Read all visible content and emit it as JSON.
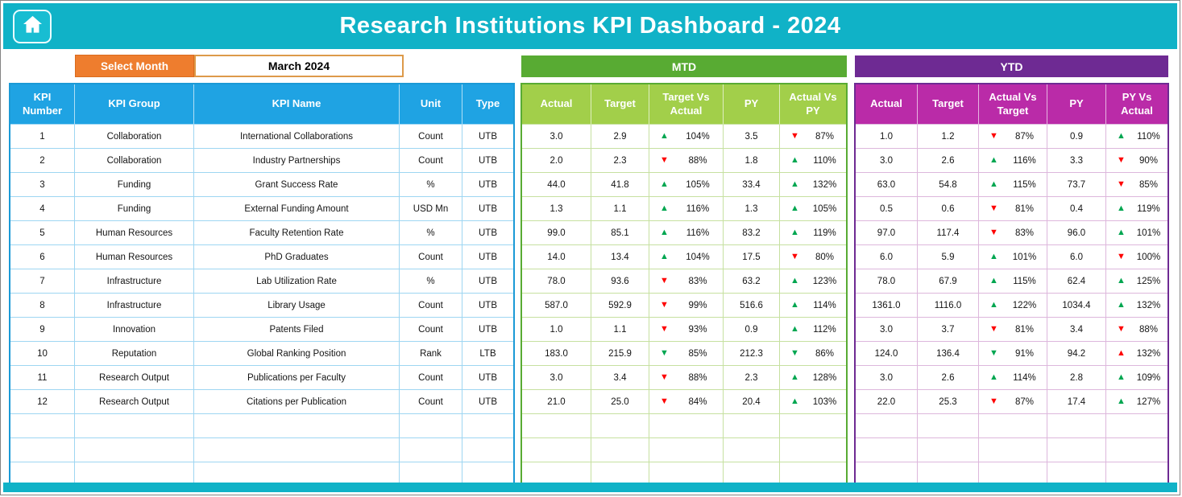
{
  "app": {
    "title": "Research Institutions KPI Dashboard - 2024"
  },
  "controls": {
    "select_month_label": "Select Month",
    "selected_month": "March 2024"
  },
  "colors": {
    "banner_teal": "#10b2c7",
    "select_month_orange": "#ee7d2e",
    "left_header_blue": "#1fa3e3",
    "mtd_banner_green": "#58ab33",
    "mtd_header_green": "#a2cf4a",
    "ytd_banner_purple": "#6e2a93",
    "ytd_header_magenta": "#ba2ba8",
    "arrow_green": "#00a650",
    "arrow_red": "#fe0000"
  },
  "table": {
    "left_headers": [
      "KPI Number",
      "KPI Group",
      "KPI Name",
      "Unit",
      "Type"
    ],
    "mtd_title": "MTD",
    "mtd_headers": [
      "Actual",
      "Target",
      "Target Vs Actual",
      "PY",
      "Actual Vs PY"
    ],
    "ytd_title": "YTD",
    "ytd_headers": [
      "Actual",
      "Target",
      "Actual Vs Target",
      "PY",
      "PY Vs Actual"
    ],
    "empty_rows": 3,
    "rows": [
      {
        "number": "1",
        "group": "Collaboration",
        "name": "International Collaborations",
        "unit": "Count",
        "type": "UTB",
        "mtd": {
          "actual": "3.0",
          "target": "2.9",
          "target_vs_actual": {
            "dir": "up",
            "color": "green",
            "pct": "104%"
          },
          "py": "3.5",
          "actual_vs_py": {
            "dir": "down",
            "color": "red",
            "pct": "87%"
          }
        },
        "ytd": {
          "actual": "1.0",
          "target": "1.2",
          "actual_vs_target": {
            "dir": "down",
            "color": "red",
            "pct": "87%"
          },
          "py": "0.9",
          "py_vs_actual": {
            "dir": "up",
            "color": "green",
            "pct": "110%"
          }
        }
      },
      {
        "number": "2",
        "group": "Collaboration",
        "name": "Industry Partnerships",
        "unit": "Count",
        "type": "UTB",
        "mtd": {
          "actual": "2.0",
          "target": "2.3",
          "target_vs_actual": {
            "dir": "down",
            "color": "red",
            "pct": "88%"
          },
          "py": "1.8",
          "actual_vs_py": {
            "dir": "up",
            "color": "green",
            "pct": "110%"
          }
        },
        "ytd": {
          "actual": "3.0",
          "target": "2.6",
          "actual_vs_target": {
            "dir": "up",
            "color": "green",
            "pct": "116%"
          },
          "py": "3.3",
          "py_vs_actual": {
            "dir": "down",
            "color": "red",
            "pct": "90%"
          }
        }
      },
      {
        "number": "3",
        "group": "Funding",
        "name": "Grant Success Rate",
        "unit": "%",
        "type": "UTB",
        "mtd": {
          "actual": "44.0",
          "target": "41.8",
          "target_vs_actual": {
            "dir": "up",
            "color": "green",
            "pct": "105%"
          },
          "py": "33.4",
          "actual_vs_py": {
            "dir": "up",
            "color": "green",
            "pct": "132%"
          }
        },
        "ytd": {
          "actual": "63.0",
          "target": "54.8",
          "actual_vs_target": {
            "dir": "up",
            "color": "green",
            "pct": "115%"
          },
          "py": "73.7",
          "py_vs_actual": {
            "dir": "down",
            "color": "red",
            "pct": "85%"
          }
        }
      },
      {
        "number": "4",
        "group": "Funding",
        "name": "External Funding Amount",
        "unit": "USD Mn",
        "type": "UTB",
        "mtd": {
          "actual": "1.3",
          "target": "1.1",
          "target_vs_actual": {
            "dir": "up",
            "color": "green",
            "pct": "116%"
          },
          "py": "1.3",
          "actual_vs_py": {
            "dir": "up",
            "color": "green",
            "pct": "105%"
          }
        },
        "ytd": {
          "actual": "0.5",
          "target": "0.6",
          "actual_vs_target": {
            "dir": "down",
            "color": "red",
            "pct": "81%"
          },
          "py": "0.4",
          "py_vs_actual": {
            "dir": "up",
            "color": "green",
            "pct": "119%"
          }
        }
      },
      {
        "number": "5",
        "group": "Human Resources",
        "name": "Faculty Retention Rate",
        "unit": "%",
        "type": "UTB",
        "mtd": {
          "actual": "99.0",
          "target": "85.1",
          "target_vs_actual": {
            "dir": "up",
            "color": "green",
            "pct": "116%"
          },
          "py": "83.2",
          "actual_vs_py": {
            "dir": "up",
            "color": "green",
            "pct": "119%"
          }
        },
        "ytd": {
          "actual": "97.0",
          "target": "117.4",
          "actual_vs_target": {
            "dir": "down",
            "color": "red",
            "pct": "83%"
          },
          "py": "96.0",
          "py_vs_actual": {
            "dir": "up",
            "color": "green",
            "pct": "101%"
          }
        }
      },
      {
        "number": "6",
        "group": "Human Resources",
        "name": "PhD Graduates",
        "unit": "Count",
        "type": "UTB",
        "mtd": {
          "actual": "14.0",
          "target": "13.4",
          "target_vs_actual": {
            "dir": "up",
            "color": "green",
            "pct": "104%"
          },
          "py": "17.5",
          "actual_vs_py": {
            "dir": "down",
            "color": "red",
            "pct": "80%"
          }
        },
        "ytd": {
          "actual": "6.0",
          "target": "5.9",
          "actual_vs_target": {
            "dir": "up",
            "color": "green",
            "pct": "101%"
          },
          "py": "6.0",
          "py_vs_actual": {
            "dir": "down",
            "color": "red",
            "pct": "100%"
          }
        }
      },
      {
        "number": "7",
        "group": "Infrastructure",
        "name": "Lab Utilization Rate",
        "unit": "%",
        "type": "UTB",
        "mtd": {
          "actual": "78.0",
          "target": "93.6",
          "target_vs_actual": {
            "dir": "down",
            "color": "red",
            "pct": "83%"
          },
          "py": "63.2",
          "actual_vs_py": {
            "dir": "up",
            "color": "green",
            "pct": "123%"
          }
        },
        "ytd": {
          "actual": "78.0",
          "target": "67.9",
          "actual_vs_target": {
            "dir": "up",
            "color": "green",
            "pct": "115%"
          },
          "py": "62.4",
          "py_vs_actual": {
            "dir": "up",
            "color": "green",
            "pct": "125%"
          }
        }
      },
      {
        "number": "8",
        "group": "Infrastructure",
        "name": "Library Usage",
        "unit": "Count",
        "type": "UTB",
        "mtd": {
          "actual": "587.0",
          "target": "592.9",
          "target_vs_actual": {
            "dir": "down",
            "color": "red",
            "pct": "99%"
          },
          "py": "516.6",
          "actual_vs_py": {
            "dir": "up",
            "color": "green",
            "pct": "114%"
          }
        },
        "ytd": {
          "actual": "1361.0",
          "target": "1116.0",
          "actual_vs_target": {
            "dir": "up",
            "color": "green",
            "pct": "122%"
          },
          "py": "1034.4",
          "py_vs_actual": {
            "dir": "up",
            "color": "green",
            "pct": "132%"
          }
        }
      },
      {
        "number": "9",
        "group": "Innovation",
        "name": "Patents Filed",
        "unit": "Count",
        "type": "UTB",
        "mtd": {
          "actual": "1.0",
          "target": "1.1",
          "target_vs_actual": {
            "dir": "down",
            "color": "red",
            "pct": "93%"
          },
          "py": "0.9",
          "actual_vs_py": {
            "dir": "up",
            "color": "green",
            "pct": "112%"
          }
        },
        "ytd": {
          "actual": "3.0",
          "target": "3.7",
          "actual_vs_target": {
            "dir": "down",
            "color": "red",
            "pct": "81%"
          },
          "py": "3.4",
          "py_vs_actual": {
            "dir": "down",
            "color": "red",
            "pct": "88%"
          }
        }
      },
      {
        "number": "10",
        "group": "Reputation",
        "name": "Global Ranking Position",
        "unit": "Rank",
        "type": "LTB",
        "mtd": {
          "actual": "183.0",
          "target": "215.9",
          "target_vs_actual": {
            "dir": "down",
            "color": "green",
            "pct": "85%"
          },
          "py": "212.3",
          "actual_vs_py": {
            "dir": "down",
            "color": "green",
            "pct": "86%"
          }
        },
        "ytd": {
          "actual": "124.0",
          "target": "136.4",
          "actual_vs_target": {
            "dir": "down",
            "color": "green",
            "pct": "91%"
          },
          "py": "94.2",
          "py_vs_actual": {
            "dir": "up",
            "color": "red",
            "pct": "132%"
          }
        }
      },
      {
        "number": "11",
        "group": "Research Output",
        "name": "Publications per Faculty",
        "unit": "Count",
        "type": "UTB",
        "mtd": {
          "actual": "3.0",
          "target": "3.4",
          "target_vs_actual": {
            "dir": "down",
            "color": "red",
            "pct": "88%"
          },
          "py": "2.3",
          "actual_vs_py": {
            "dir": "up",
            "color": "green",
            "pct": "128%"
          }
        },
        "ytd": {
          "actual": "3.0",
          "target": "2.6",
          "actual_vs_target": {
            "dir": "up",
            "color": "green",
            "pct": "114%"
          },
          "py": "2.8",
          "py_vs_actual": {
            "dir": "up",
            "color": "green",
            "pct": "109%"
          }
        }
      },
      {
        "number": "12",
        "group": "Research Output",
        "name": "Citations per Publication",
        "unit": "Count",
        "type": "UTB",
        "mtd": {
          "actual": "21.0",
          "target": "25.0",
          "target_vs_actual": {
            "dir": "down",
            "color": "red",
            "pct": "84%"
          },
          "py": "20.4",
          "actual_vs_py": {
            "dir": "up",
            "color": "green",
            "pct": "103%"
          }
        },
        "ytd": {
          "actual": "22.0",
          "target": "25.3",
          "actual_vs_target": {
            "dir": "down",
            "color": "red",
            "pct": "87%"
          },
          "py": "17.4",
          "py_vs_actual": {
            "dir": "up",
            "color": "green",
            "pct": "127%"
          }
        }
      }
    ]
  }
}
